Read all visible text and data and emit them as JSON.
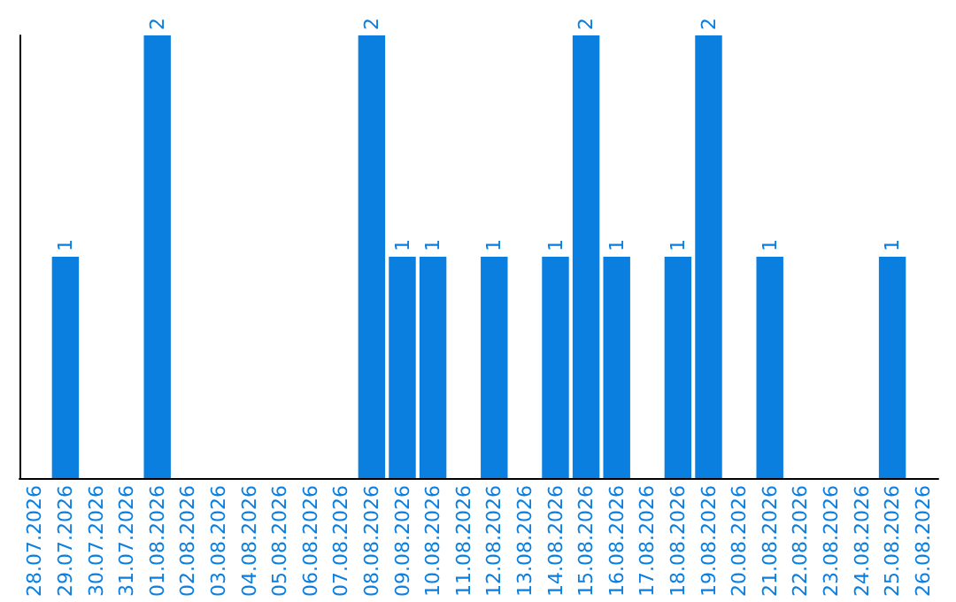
{
  "chart_data": {
    "type": "bar",
    "categories": [
      "28.07.2026",
      "29.07.2026",
      "30.07.2026",
      "31.07.2026",
      "01.08.2026",
      "02.08.2026",
      "03.08.2026",
      "04.08.2026",
      "05.08.2026",
      "06.08.2026",
      "07.08.2026",
      "08.08.2026",
      "09.08.2026",
      "10.08.2026",
      "11.08.2026",
      "12.08.2026",
      "13.08.2026",
      "14.08.2026",
      "15.08.2026",
      "16.08.2026",
      "17.08.2026",
      "18.08.2026",
      "19.08.2026",
      "20.08.2026",
      "21.08.2026",
      "22.08.2026",
      "23.08.2026",
      "24.08.2026",
      "25.08.2026",
      "26.08.2026"
    ],
    "values": [
      0,
      1,
      0,
      0,
      2,
      0,
      0,
      0,
      0,
      0,
      0,
      2,
      1,
      1,
      0,
      1,
      0,
      1,
      2,
      1,
      0,
      1,
      2,
      0,
      1,
      0,
      0,
      0,
      1,
      0
    ],
    "value_labels": [
      null,
      "1",
      null,
      null,
      "2",
      null,
      null,
      null,
      null,
      null,
      null,
      "2",
      "1",
      "1",
      null,
      "1",
      null,
      "1",
      "2",
      "1",
      null,
      "1",
      "2",
      null,
      "1",
      null,
      null,
      null,
      "1",
      null
    ],
    "color": "#0a7fe0",
    "grid": false,
    "tick_labels": "x"
  }
}
